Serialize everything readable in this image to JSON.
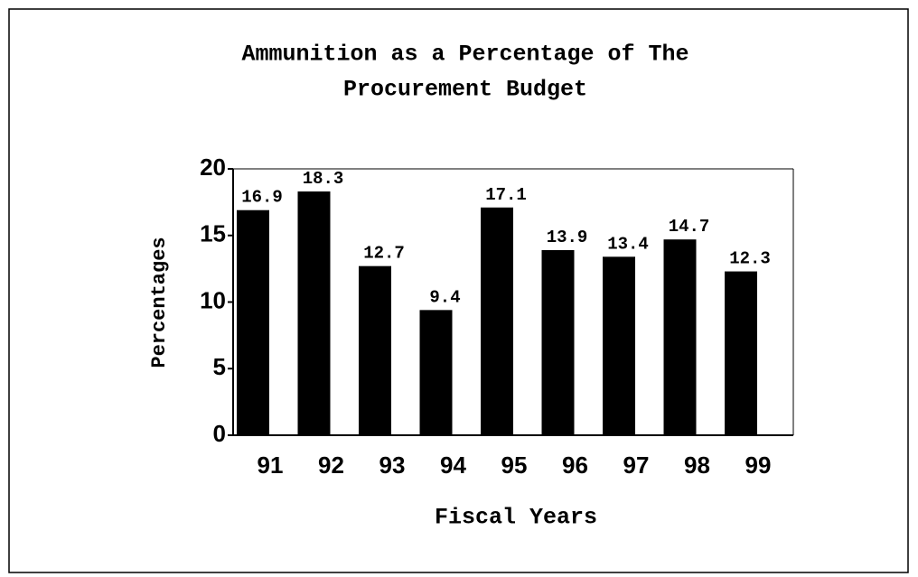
{
  "chart_data": {
    "type": "bar",
    "title": [
      "Ammunition as a Percentage of The",
      "Procurement Budget"
    ],
    "x_label": "Fiscal Years",
    "y_label": "Percentages",
    "categories": [
      "91",
      "92",
      "93",
      "94",
      "95",
      "96",
      "97",
      "98",
      "99"
    ],
    "values": [
      16.9,
      18.3,
      12.7,
      9.4,
      17.1,
      13.9,
      13.4,
      14.7,
      12.3
    ],
    "color": "#000000",
    "ylim": [
      0,
      20
    ],
    "yticks": [
      0,
      5,
      10,
      15,
      20
    ]
  }
}
